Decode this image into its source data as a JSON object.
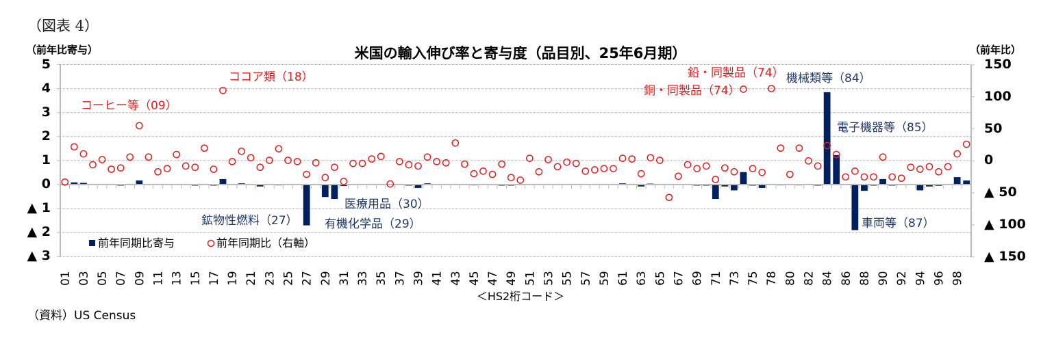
{
  "figure_label": "（図表 4）",
  "left_axis_unit": "（前年比寄与）",
  "right_axis_unit": "（前年比）",
  "source": "（資料）US  Census",
  "colors": {
    "bar": "#002060",
    "marker": "#e02020",
    "grid": "#a0a0a0",
    "annot_red": "#e02020",
    "annot_navy": "#1f3864"
  },
  "chart_data": {
    "type": "bar+scatter",
    "title": "米国の輸入伸び率と寄与度（品目別、25年6月期）",
    "xlabel": "＜HS2桁コード＞",
    "ylabel_left": "（前年比寄与）",
    "ylabel_right": "（前年比）",
    "ylim_left": [
      -3,
      5
    ],
    "ylim_right": [
      -150,
      150
    ],
    "yticks_left": [
      "5",
      "4",
      "3",
      "2",
      "1",
      "0",
      "▲ 1",
      "▲ 2",
      "▲ 3"
    ],
    "yticks_right": [
      "150",
      "100",
      "50",
      "0",
      "▲ 50",
      "▲ 100",
      "▲ 150"
    ],
    "grid": true,
    "legend": {
      "position": "lower-left inside",
      "entries": [
        "前年同期比寄与",
        "前年同期比（右軸）"
      ]
    },
    "categories": [
      "01",
      "02",
      "03",
      "04",
      "05",
      "06",
      "07",
      "08",
      "09",
      "10",
      "11",
      "12",
      "13",
      "14",
      "15",
      "16",
      "17",
      "18",
      "19",
      "20",
      "21",
      "22",
      "23",
      "24",
      "25",
      "26",
      "27",
      "28",
      "29",
      "30",
      "31",
      "32",
      "33",
      "34",
      "35",
      "36",
      "37",
      "38",
      "39",
      "40",
      "41",
      "42",
      "43",
      "44",
      "45",
      "46",
      "47",
      "48",
      "49",
      "50",
      "51",
      "52",
      "53",
      "54",
      "55",
      "56",
      "57",
      "58",
      "59",
      "60",
      "61",
      "62",
      "63",
      "64",
      "65",
      "66",
      "67",
      "68",
      "69",
      "70",
      "71",
      "72",
      "73",
      "74",
      "75",
      "76",
      "78",
      "79",
      "80",
      "81",
      "82",
      "83",
      "84",
      "85",
      "86",
      "87",
      "88",
      "89",
      "90",
      "91",
      "92",
      "93",
      "94",
      "95",
      "96",
      "97",
      "98",
      "99"
    ],
    "tick_labels_shown": [
      "01",
      "03",
      "05",
      "07",
      "09",
      "11",
      "13",
      "15",
      "17",
      "19",
      "21",
      "23",
      "25",
      "27",
      "29",
      "31",
      "33",
      "35",
      "37",
      "39",
      "41",
      "43",
      "45",
      "47",
      "49",
      "51",
      "53",
      "55",
      "57",
      "59",
      "61",
      "63",
      "65",
      "67",
      "69",
      "71",
      "73",
      "75",
      "78",
      "80",
      "82",
      "84",
      "86",
      "88",
      "90",
      "92",
      "94",
      "96",
      "98"
    ],
    "series": [
      {
        "name": "前年同期比寄与",
        "axis": "left",
        "type": "bar",
        "values": [
          0.0,
          0.09,
          0.07,
          0.0,
          0.0,
          0.0,
          -0.02,
          0.03,
          0.17,
          0.0,
          0.0,
          0.0,
          0.0,
          0.0,
          -0.02,
          0.03,
          -0.01,
          0.23,
          0.0,
          0.05,
          0.02,
          -0.08,
          0.0,
          0.01,
          0.0,
          0.0,
          -1.7,
          0.0,
          -0.52,
          -0.6,
          -0.06,
          0.0,
          0.0,
          0.0,
          0.0,
          0.0,
          0.0,
          -0.02,
          -0.14,
          0.05,
          0.0,
          0.0,
          0.0,
          0.0,
          0.01,
          0.0,
          0.0,
          -0.02,
          -0.03,
          0.0,
          0.0,
          0.0,
          0.0,
          0.0,
          0.0,
          0.0,
          0.0,
          0.0,
          0.0,
          0.0,
          0.05,
          0.03,
          -0.08,
          0.04,
          0.0,
          0.0,
          0.0,
          0.0,
          -0.01,
          -0.01,
          -0.6,
          -0.08,
          -0.24,
          0.52,
          -0.02,
          -0.14,
          0.0,
          0.01,
          0.0,
          0.01,
          0.0,
          -0.01,
          3.85,
          1.23,
          0.0,
          -1.9,
          -0.26,
          -0.01,
          0.23,
          -0.03,
          0.0,
          0.0,
          -0.24,
          -0.08,
          -0.05,
          0.0,
          0.31,
          0.17
        ]
      },
      {
        "name": "前年同期比（右軸）",
        "axis": "right",
        "type": "scatter",
        "values": [
          -33,
          22,
          11,
          -6,
          2,
          -13,
          -11,
          6,
          55,
          6,
          -17,
          -12,
          10,
          -8,
          -10,
          20,
          -13,
          110,
          -1,
          15,
          5,
          -10,
          1,
          19,
          1,
          -1,
          -21,
          -3,
          -26,
          -10,
          -32,
          -4,
          -4,
          3,
          7,
          -36,
          -1,
          -6,
          -8,
          6,
          -1,
          -3,
          28,
          -5,
          -20,
          -16,
          -21,
          -5,
          -26,
          -30,
          4,
          -17,
          2,
          -9,
          -2,
          -4,
          -16,
          -14,
          -12,
          -12,
          4,
          3,
          -20,
          5,
          1,
          -57,
          -24,
          -6,
          -12,
          -8,
          -29,
          -11,
          -17,
          112,
          -12,
          -18,
          113,
          20,
          -21,
          20,
          0,
          -8,
          24,
          10,
          -25,
          -16,
          -25,
          -25,
          6,
          -25,
          -27,
          -10,
          -13,
          -9,
          -17,
          -9,
          11,
          26
        ]
      }
    ],
    "annotations": [
      {
        "text": "コーヒー等（09）",
        "color": "red"
      },
      {
        "text": "ココア類（18）",
        "color": "red"
      },
      {
        "text": "鉛・同製品（74）",
        "color": "red"
      },
      {
        "text": "銅・同製品（74）",
        "color": "red"
      },
      {
        "text": "機械類等（84）",
        "color": "navy"
      },
      {
        "text": "電子機器等（85）",
        "color": "navy"
      },
      {
        "text": "鉱物性燃料（27）",
        "color": "navy"
      },
      {
        "text": "医療用品（30）",
        "color": "navy"
      },
      {
        "text": "有機化学品（29）",
        "color": "navy"
      },
      {
        "text": "車両等（87）",
        "color": "navy"
      }
    ]
  }
}
